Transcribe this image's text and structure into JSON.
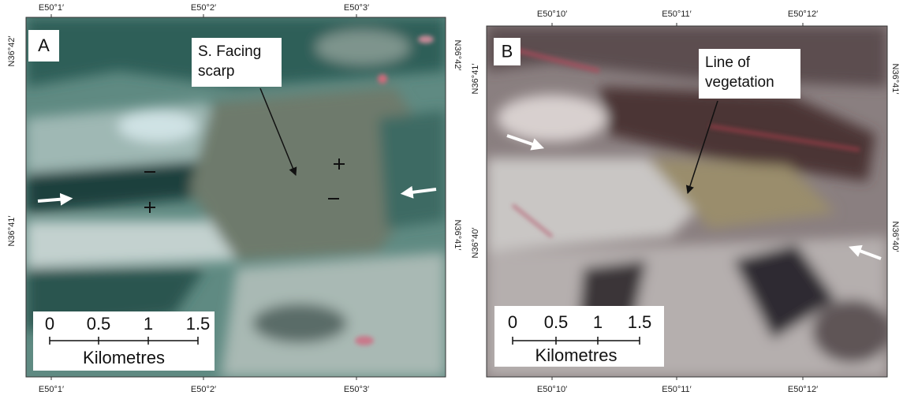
{
  "panels": [
    {
      "label": "A",
      "top_labels": [
        "E50°1′",
        "E50°2′",
        "E50°3′"
      ],
      "bottom_labels": [
        "E50°1′",
        "E50°2′",
        "E50°3′"
      ],
      "left_labels": [
        "N36°42′",
        "N36°41′"
      ],
      "right_labels": [
        "N36°42′",
        "N36°41′"
      ],
      "annotation": [
        "S. Facing",
        "scarp"
      ],
      "scale_ticks": [
        "0",
        "0.5",
        "1",
        "1.5"
      ],
      "scale_unit": "Kilometres"
    },
    {
      "label": "B",
      "top_labels": [
        "E50°10′",
        "E50°11′",
        "E50°12′"
      ],
      "bottom_labels": [
        "E50°10′",
        "E50°11′",
        "E50°12′"
      ],
      "left_labels": [
        "N36°41′",
        "N36°40′"
      ],
      "right_labels": [
        "N36°41′",
        "N36°40′"
      ],
      "annotation": [
        "Line of",
        "vegetation"
      ],
      "scale_ticks": [
        "0",
        "0.5",
        "1",
        "1.5"
      ],
      "scale_unit": "Kilometres"
    }
  ]
}
